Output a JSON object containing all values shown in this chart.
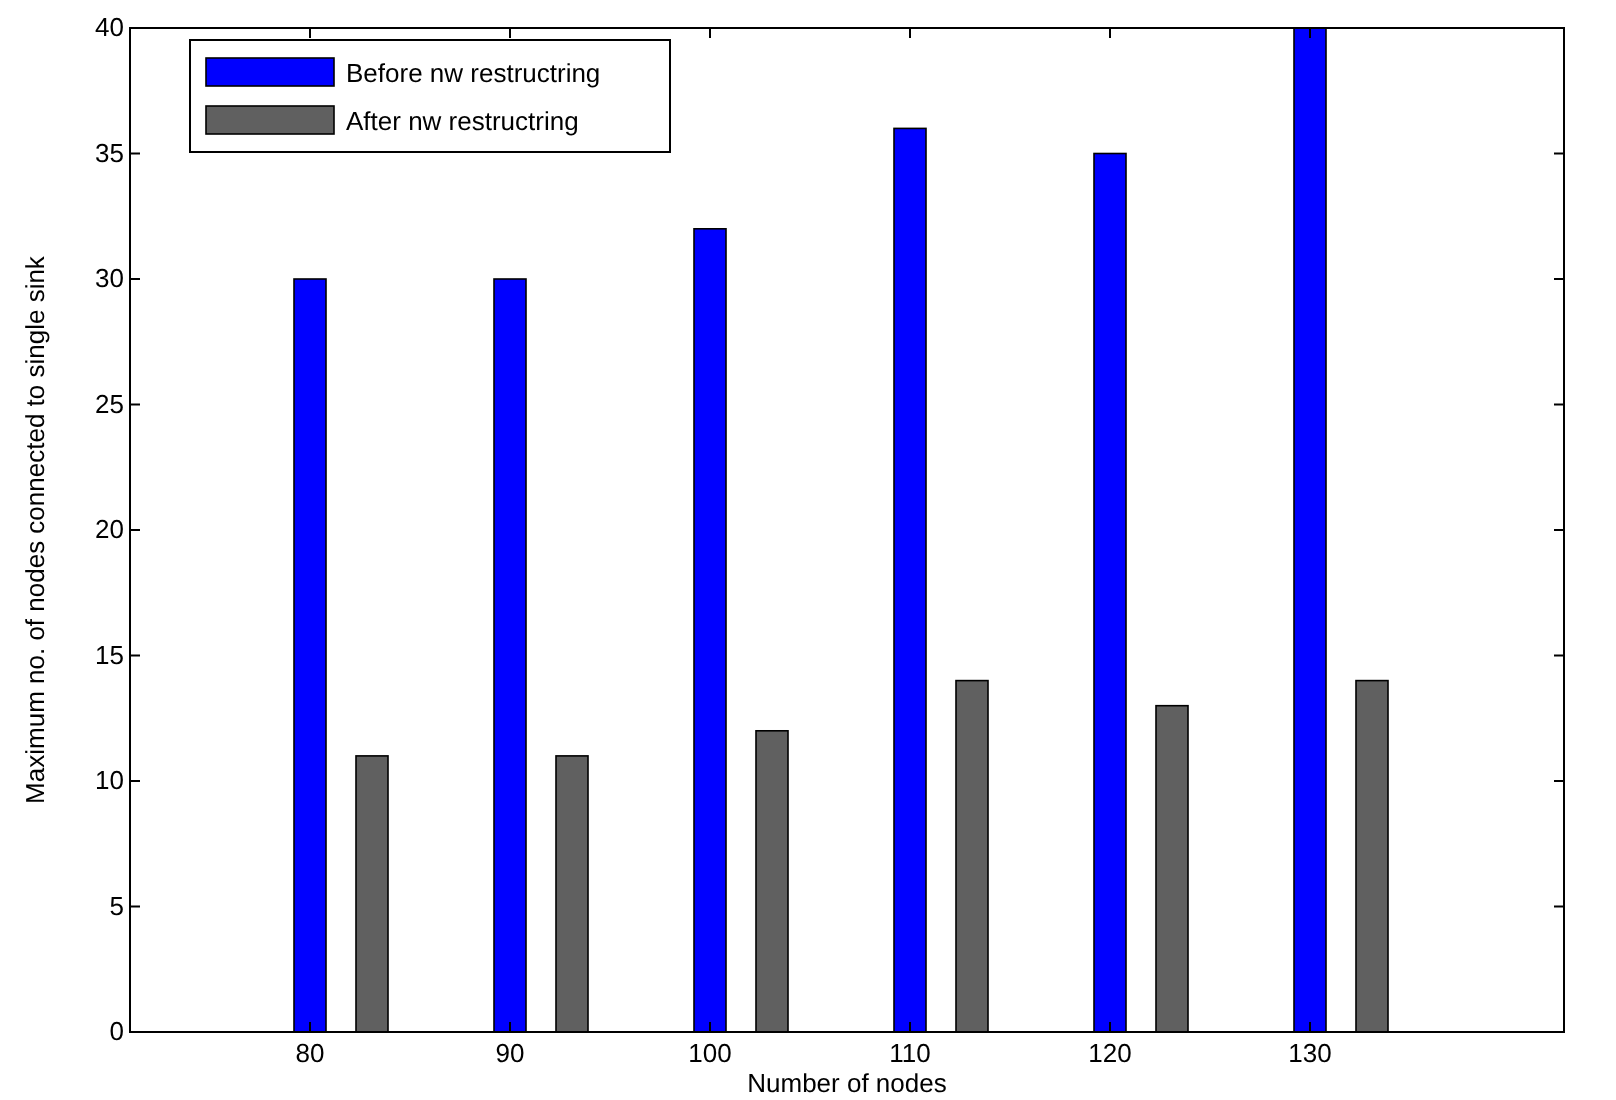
{
  "chart_data": {
    "type": "bar",
    "xlabel": "Number of nodes",
    "ylabel": "Maximum no. of nodes connected to single sink",
    "categories": [
      "80",
      "90",
      "100",
      "110",
      "120",
      "130"
    ],
    "series": [
      {
        "name": "Before nw restructring",
        "color": "#0000ff",
        "values": [
          30,
          30,
          32,
          36,
          35,
          40
        ]
      },
      {
        "name": "After nw restructring",
        "color": "#606060",
        "values": [
          11,
          11,
          12,
          14,
          13,
          14
        ]
      }
    ],
    "ylim": [
      0,
      40
    ],
    "yticks": [
      0,
      5,
      10,
      15,
      20,
      25,
      30,
      35,
      40
    ],
    "legend": "top left",
    "grid": false
  }
}
